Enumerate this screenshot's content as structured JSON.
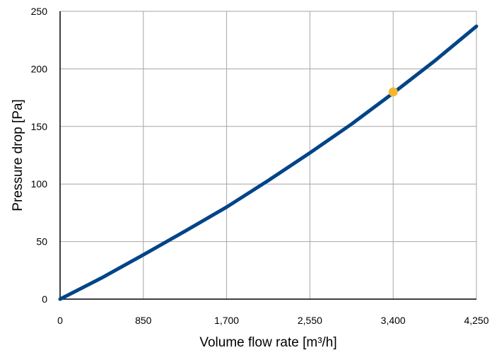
{
  "chart_data": {
    "type": "line",
    "title": "",
    "xlabel": "Volume flow rate [m³/h]",
    "ylabel": "Pressure drop [Pa]",
    "xlim": [
      0,
      4250
    ],
    "ylim": [
      0,
      250
    ],
    "x_ticks": [
      0,
      850,
      1700,
      2550,
      3400,
      4250
    ],
    "x_tick_labels": [
      "0",
      "850",
      "1,700",
      "2,550",
      "3,400",
      "4,250"
    ],
    "y_ticks": [
      0,
      50,
      100,
      150,
      200,
      250
    ],
    "y_tick_labels": [
      "0",
      "50",
      "100",
      "150",
      "200",
      "250"
    ],
    "grid": true,
    "series": [
      {
        "color": "#004488",
        "x": [
          0,
          425,
          850,
          1275,
          1700,
          2125,
          2550,
          2975,
          3400,
          3825,
          4250
        ],
        "y": [
          0,
          18.5,
          38.5,
          59,
          80,
          103,
          127,
          152,
          179,
          207,
          237
        ]
      }
    ],
    "highlight_point": {
      "x": 3400,
      "y": 180,
      "color": "#f5b731"
    }
  }
}
